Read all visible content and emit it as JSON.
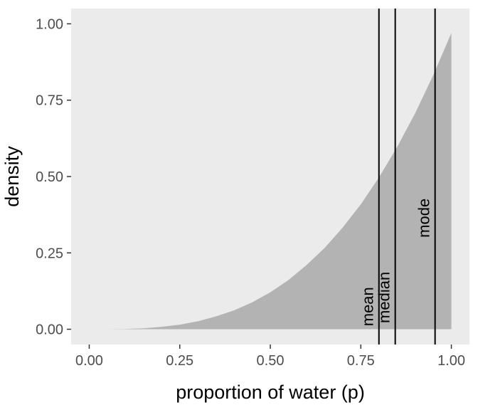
{
  "chart_data": {
    "type": "area",
    "title": "",
    "xlabel": "proportion of water (p)",
    "ylabel": "density",
    "xlim": [
      0,
      1
    ],
    "ylim": [
      0,
      1
    ],
    "grid": false,
    "legend": false,
    "xticks": [
      {
        "label": "0.00",
        "value": 0.0
      },
      {
        "label": "0.25",
        "value": 0.25
      },
      {
        "label": "0.50",
        "value": 0.5
      },
      {
        "label": "0.75",
        "value": 0.75
      },
      {
        "label": "1.00",
        "value": 1.0
      }
    ],
    "yticks": [
      {
        "label": "0.00",
        "value": 0.0
      },
      {
        "label": "0.25",
        "value": 0.25
      },
      {
        "label": "0.50",
        "value": 0.5
      },
      {
        "label": "0.75",
        "value": 0.75
      },
      {
        "label": "1.00",
        "value": 1.0
      }
    ],
    "series": [
      {
        "name": "density",
        "x": [
          0.0,
          0.05,
          0.1,
          0.15,
          0.2,
          0.25,
          0.3,
          0.35,
          0.4,
          0.45,
          0.5,
          0.55,
          0.6,
          0.65,
          0.7,
          0.75,
          0.8,
          0.85,
          0.9,
          0.95,
          1.0
        ],
        "y": [
          0.0,
          0.0,
          0.001,
          0.003,
          0.008,
          0.015,
          0.026,
          0.042,
          0.062,
          0.088,
          0.121,
          0.161,
          0.21,
          0.266,
          0.333,
          0.409,
          0.497,
          0.596,
          0.707,
          0.832,
          0.97
        ]
      }
    ],
    "vlines": [
      {
        "label": "mean",
        "x": 0.8,
        "label_y": 0.01
      },
      {
        "label": "median",
        "x": 0.845,
        "label_y": 0.02
      },
      {
        "label": "mode",
        "x": 0.955,
        "label_y": 0.3
      }
    ],
    "colors": {
      "panel_bg": "#ebebeb",
      "area_fill": "#b3b3b3",
      "vline": "#000000",
      "tick_text": "#4d4d4d",
      "axis_text": "#000000"
    }
  }
}
